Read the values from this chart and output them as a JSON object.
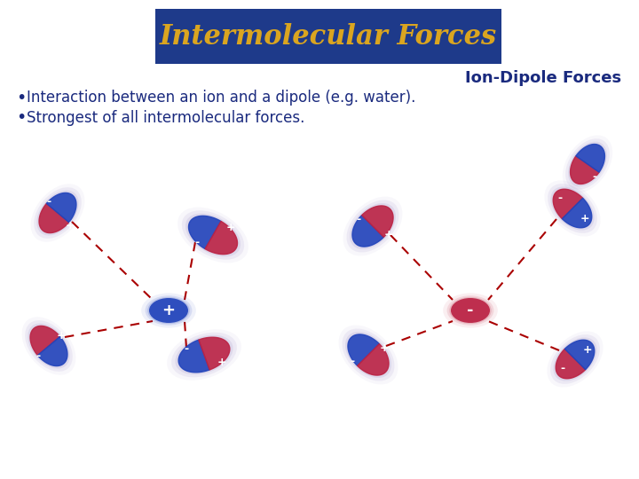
{
  "title": "Intermolecular Forces",
  "title_color": "#DAA520",
  "title_bg_color": "#1E3A8A",
  "subtitle": "Ion-Dipole Forces",
  "subtitle_color": "#1a2a7e",
  "bullet1": "Interaction between an ion and a dipole (e.g. water).",
  "bullet2": "Strongest of all intermolecular forces.",
  "bullet_color": "#1a2a7e",
  "bg_color": "#ffffff",
  "dashed_color": "#aa0000",
  "dipole_blue": "#2244bb",
  "dipole_red": "#bb2244"
}
